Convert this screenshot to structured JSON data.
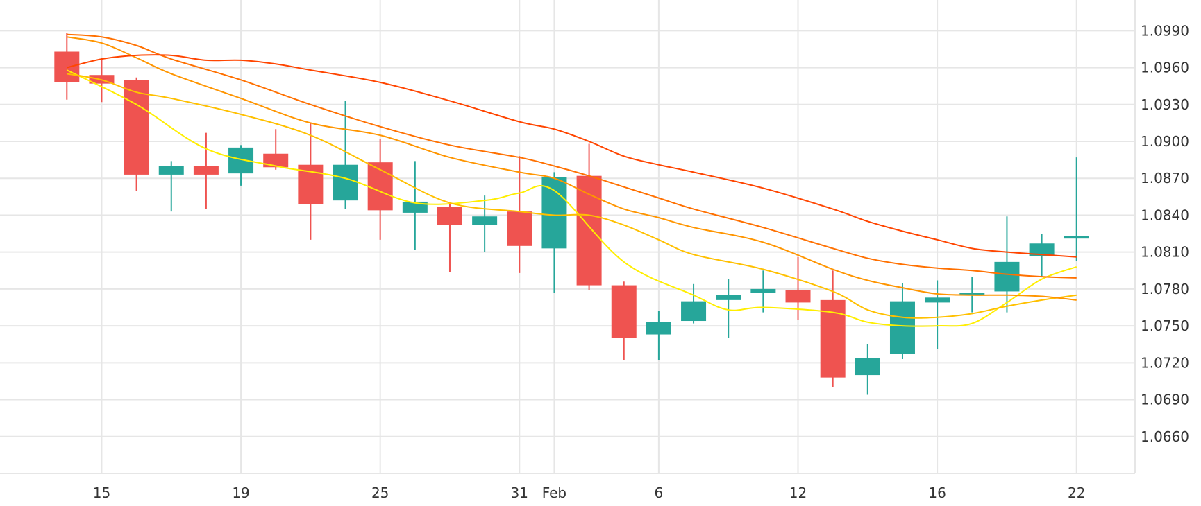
{
  "chart_data": {
    "type": "candlestick",
    "title": "",
    "xlabel": "",
    "ylabel": "",
    "ylim": [
      1.063,
      1.1015
    ],
    "y_ticks": [
      "1.0990",
      "1.0960",
      "1.0930",
      "1.0900",
      "1.0870",
      "1.0840",
      "1.0810",
      "1.0780",
      "1.0750",
      "1.0720",
      "1.0690",
      "1.0660"
    ],
    "y_tick_values": [
      1.099,
      1.096,
      1.093,
      1.09,
      1.087,
      1.084,
      1.081,
      1.078,
      1.075,
      1.072,
      1.069,
      1.066
    ],
    "x_ticks": [
      {
        "label": "15",
        "x": 1.0
      },
      {
        "label": "19",
        "x": 5.0
      },
      {
        "label": "25",
        "x": 9.0
      },
      {
        "label": "31",
        "x": 13.0
      },
      {
        "label": "Feb",
        "x": 14.0
      },
      {
        "label": "6",
        "x": 17.0
      },
      {
        "label": "12",
        "x": 21.0
      },
      {
        "label": "16",
        "x": 25.0
      },
      {
        "label": "22",
        "x": 29.0
      }
    ],
    "x_range": [
      -1.92,
      30.68
    ],
    "grid": true,
    "colors": {
      "up": "#26a69a",
      "down": "#ef5350",
      "grid": "#e6e6e6",
      "text": "#333333"
    },
    "candles": [
      {
        "x": 0,
        "open": 1.0973,
        "high": 1.0988,
        "low": 1.0934,
        "close": 1.0948
      },
      {
        "x": 1,
        "open": 1.0954,
        "high": 1.0968,
        "low": 1.0932,
        "close": 1.0947
      },
      {
        "x": 2,
        "open": 1.095,
        "high": 1.0952,
        "low": 1.086,
        "close": 1.0873
      },
      {
        "x": 3,
        "open": 1.0873,
        "high": 1.0884,
        "low": 1.0843,
        "close": 1.088
      },
      {
        "x": 4,
        "open": 1.088,
        "high": 1.0907,
        "low": 1.0845,
        "close": 1.0873
      },
      {
        "x": 5,
        "open": 1.0874,
        "high": 1.0897,
        "low": 1.0864,
        "close": 1.0895
      },
      {
        "x": 6,
        "open": 1.089,
        "high": 1.091,
        "low": 1.0877,
        "close": 1.0879
      },
      {
        "x": 7,
        "open": 1.0881,
        "high": 1.0915,
        "low": 1.082,
        "close": 1.0849
      },
      {
        "x": 8,
        "open": 1.0852,
        "high": 1.0933,
        "low": 1.0845,
        "close": 1.0881
      },
      {
        "x": 9,
        "open": 1.0883,
        "high": 1.0902,
        "low": 1.082,
        "close": 1.0844
      },
      {
        "x": 10,
        "open": 1.0842,
        "high": 1.0884,
        "low": 1.0812,
        "close": 1.0851
      },
      {
        "x": 11,
        "open": 1.0847,
        "high": 1.0849,
        "low": 1.0794,
        "close": 1.0832
      },
      {
        "x": 12,
        "open": 1.0832,
        "high": 1.0856,
        "low": 1.081,
        "close": 1.0839
      },
      {
        "x": 13,
        "open": 1.0843,
        "high": 1.0888,
        "low": 1.0793,
        "close": 1.0815
      },
      {
        "x": 14,
        "open": 1.0813,
        "high": 1.0875,
        "low": 1.0777,
        "close": 1.0871
      },
      {
        "x": 15,
        "open": 1.0872,
        "high": 1.0898,
        "low": 1.0779,
        "close": 1.0783
      },
      {
        "x": 16,
        "open": 1.0783,
        "high": 1.0786,
        "low": 1.0722,
        "close": 1.074
      },
      {
        "x": 17,
        "open": 1.0743,
        "high": 1.0762,
        "low": 1.0722,
        "close": 1.0753
      },
      {
        "x": 18,
        "open": 1.0754,
        "high": 1.0784,
        "low": 1.0752,
        "close": 1.077
      },
      {
        "x": 19,
        "open": 1.0771,
        "high": 1.0788,
        "low": 1.074,
        "close": 1.0775
      },
      {
        "x": 20,
        "open": 1.0777,
        "high": 1.0795,
        "low": 1.0761,
        "close": 1.078
      },
      {
        "x": 21,
        "open": 1.0779,
        "high": 1.0806,
        "low": 1.0755,
        "close": 1.0769
      },
      {
        "x": 22,
        "open": 1.0771,
        "high": 1.0795,
        "low": 1.07,
        "close": 1.0708
      },
      {
        "x": 23,
        "open": 1.071,
        "high": 1.0735,
        "low": 1.0694,
        "close": 1.0724
      },
      {
        "x": 24,
        "open": 1.0727,
        "high": 1.0785,
        "low": 1.0723,
        "close": 1.077
      },
      {
        "x": 25,
        "open": 1.0769,
        "high": 1.0787,
        "low": 1.0731,
        "close": 1.0773
      },
      {
        "x": 26,
        "open": 1.0776,
        "high": 1.079,
        "low": 1.0761,
        "close": 1.0777
      },
      {
        "x": 27,
        "open": 1.0778,
        "high": 1.0839,
        "low": 1.0761,
        "close": 1.0802
      },
      {
        "x": 28,
        "open": 1.0807,
        "high": 1.0825,
        "low": 1.079,
        "close": 1.0817
      },
      {
        "x": 29,
        "open": 1.0821,
        "high": 1.0887,
        "low": 1.0803,
        "close": 1.0823
      }
    ],
    "series": [
      {
        "color": "#ffee00",
        "x": [
          0,
          2,
          4,
          6,
          8,
          10,
          12,
          13,
          14,
          16,
          18,
          19,
          20,
          22,
          23,
          24,
          25,
          26,
          27,
          28,
          29
        ],
        "values": [
          1.0958,
          1.093,
          1.0894,
          1.088,
          1.087,
          1.085,
          1.0852,
          1.0858,
          1.086,
          1.0802,
          1.0775,
          1.0763,
          1.0765,
          1.0761,
          1.0753,
          1.075,
          1.075,
          1.0752,
          1.0769,
          1.0788,
          1.0798
        ]
      },
      {
        "color": "#ffc000",
        "x": [
          0,
          1,
          2,
          3,
          5,
          7,
          9,
          11,
          13,
          14,
          15,
          16,
          17,
          18,
          20,
          22,
          23,
          24,
          25,
          26,
          27,
          28,
          29
        ],
        "values": [
          1.0955,
          1.095,
          1.094,
          1.0935,
          1.0922,
          1.0905,
          1.0877,
          1.085,
          1.0843,
          1.084,
          1.084,
          1.0832,
          1.082,
          1.0808,
          1.0796,
          1.0778,
          1.0763,
          1.0757,
          1.0757,
          1.076,
          1.0766,
          1.0771,
          1.0775
        ]
      },
      {
        "color": "#ff9500",
        "x": [
          0,
          1,
          2,
          3,
          5,
          7,
          9,
          11,
          13,
          14,
          15,
          16,
          17,
          18,
          20,
          22,
          23,
          24,
          25,
          26,
          27,
          28,
          29
        ],
        "values": [
          1.0985,
          1.098,
          1.0968,
          1.0955,
          1.0935,
          1.0915,
          1.0905,
          1.0887,
          1.0875,
          1.087,
          1.0857,
          1.0845,
          1.0838,
          1.083,
          1.0818,
          1.0796,
          1.0787,
          1.0781,
          1.0776,
          1.0775,
          1.0775,
          1.0774,
          1.0771
        ]
      },
      {
        "color": "#ff7000",
        "x": [
          0,
          1,
          2,
          3,
          5,
          7,
          9,
          11,
          13,
          14,
          15,
          16,
          17,
          18,
          20,
          22,
          23,
          24,
          25,
          26,
          27,
          28,
          29
        ],
        "values": [
          1.0987,
          1.0985,
          1.0978,
          1.0967,
          1.095,
          1.093,
          1.0912,
          1.0897,
          1.0887,
          1.088,
          1.0872,
          1.0863,
          1.0854,
          1.0845,
          1.083,
          1.0813,
          1.0805,
          1.08,
          1.0797,
          1.0795,
          1.0792,
          1.079,
          1.0789
        ]
      },
      {
        "color": "#ff4500",
        "x": [
          0,
          1,
          2,
          3,
          4,
          5,
          6,
          7,
          9,
          11,
          13,
          14,
          15,
          16,
          17,
          18,
          20,
          22,
          23,
          24,
          25,
          26,
          27,
          28,
          29
        ],
        "values": [
          1.096,
          1.0967,
          1.097,
          1.097,
          1.0966,
          1.0966,
          1.0963,
          1.0958,
          1.0948,
          1.0933,
          1.0916,
          1.091,
          1.09,
          1.0888,
          1.0881,
          1.0875,
          1.0862,
          1.0845,
          1.0835,
          1.0827,
          1.082,
          1.0813,
          1.081,
          1.0808,
          1.0806
        ]
      }
    ]
  }
}
